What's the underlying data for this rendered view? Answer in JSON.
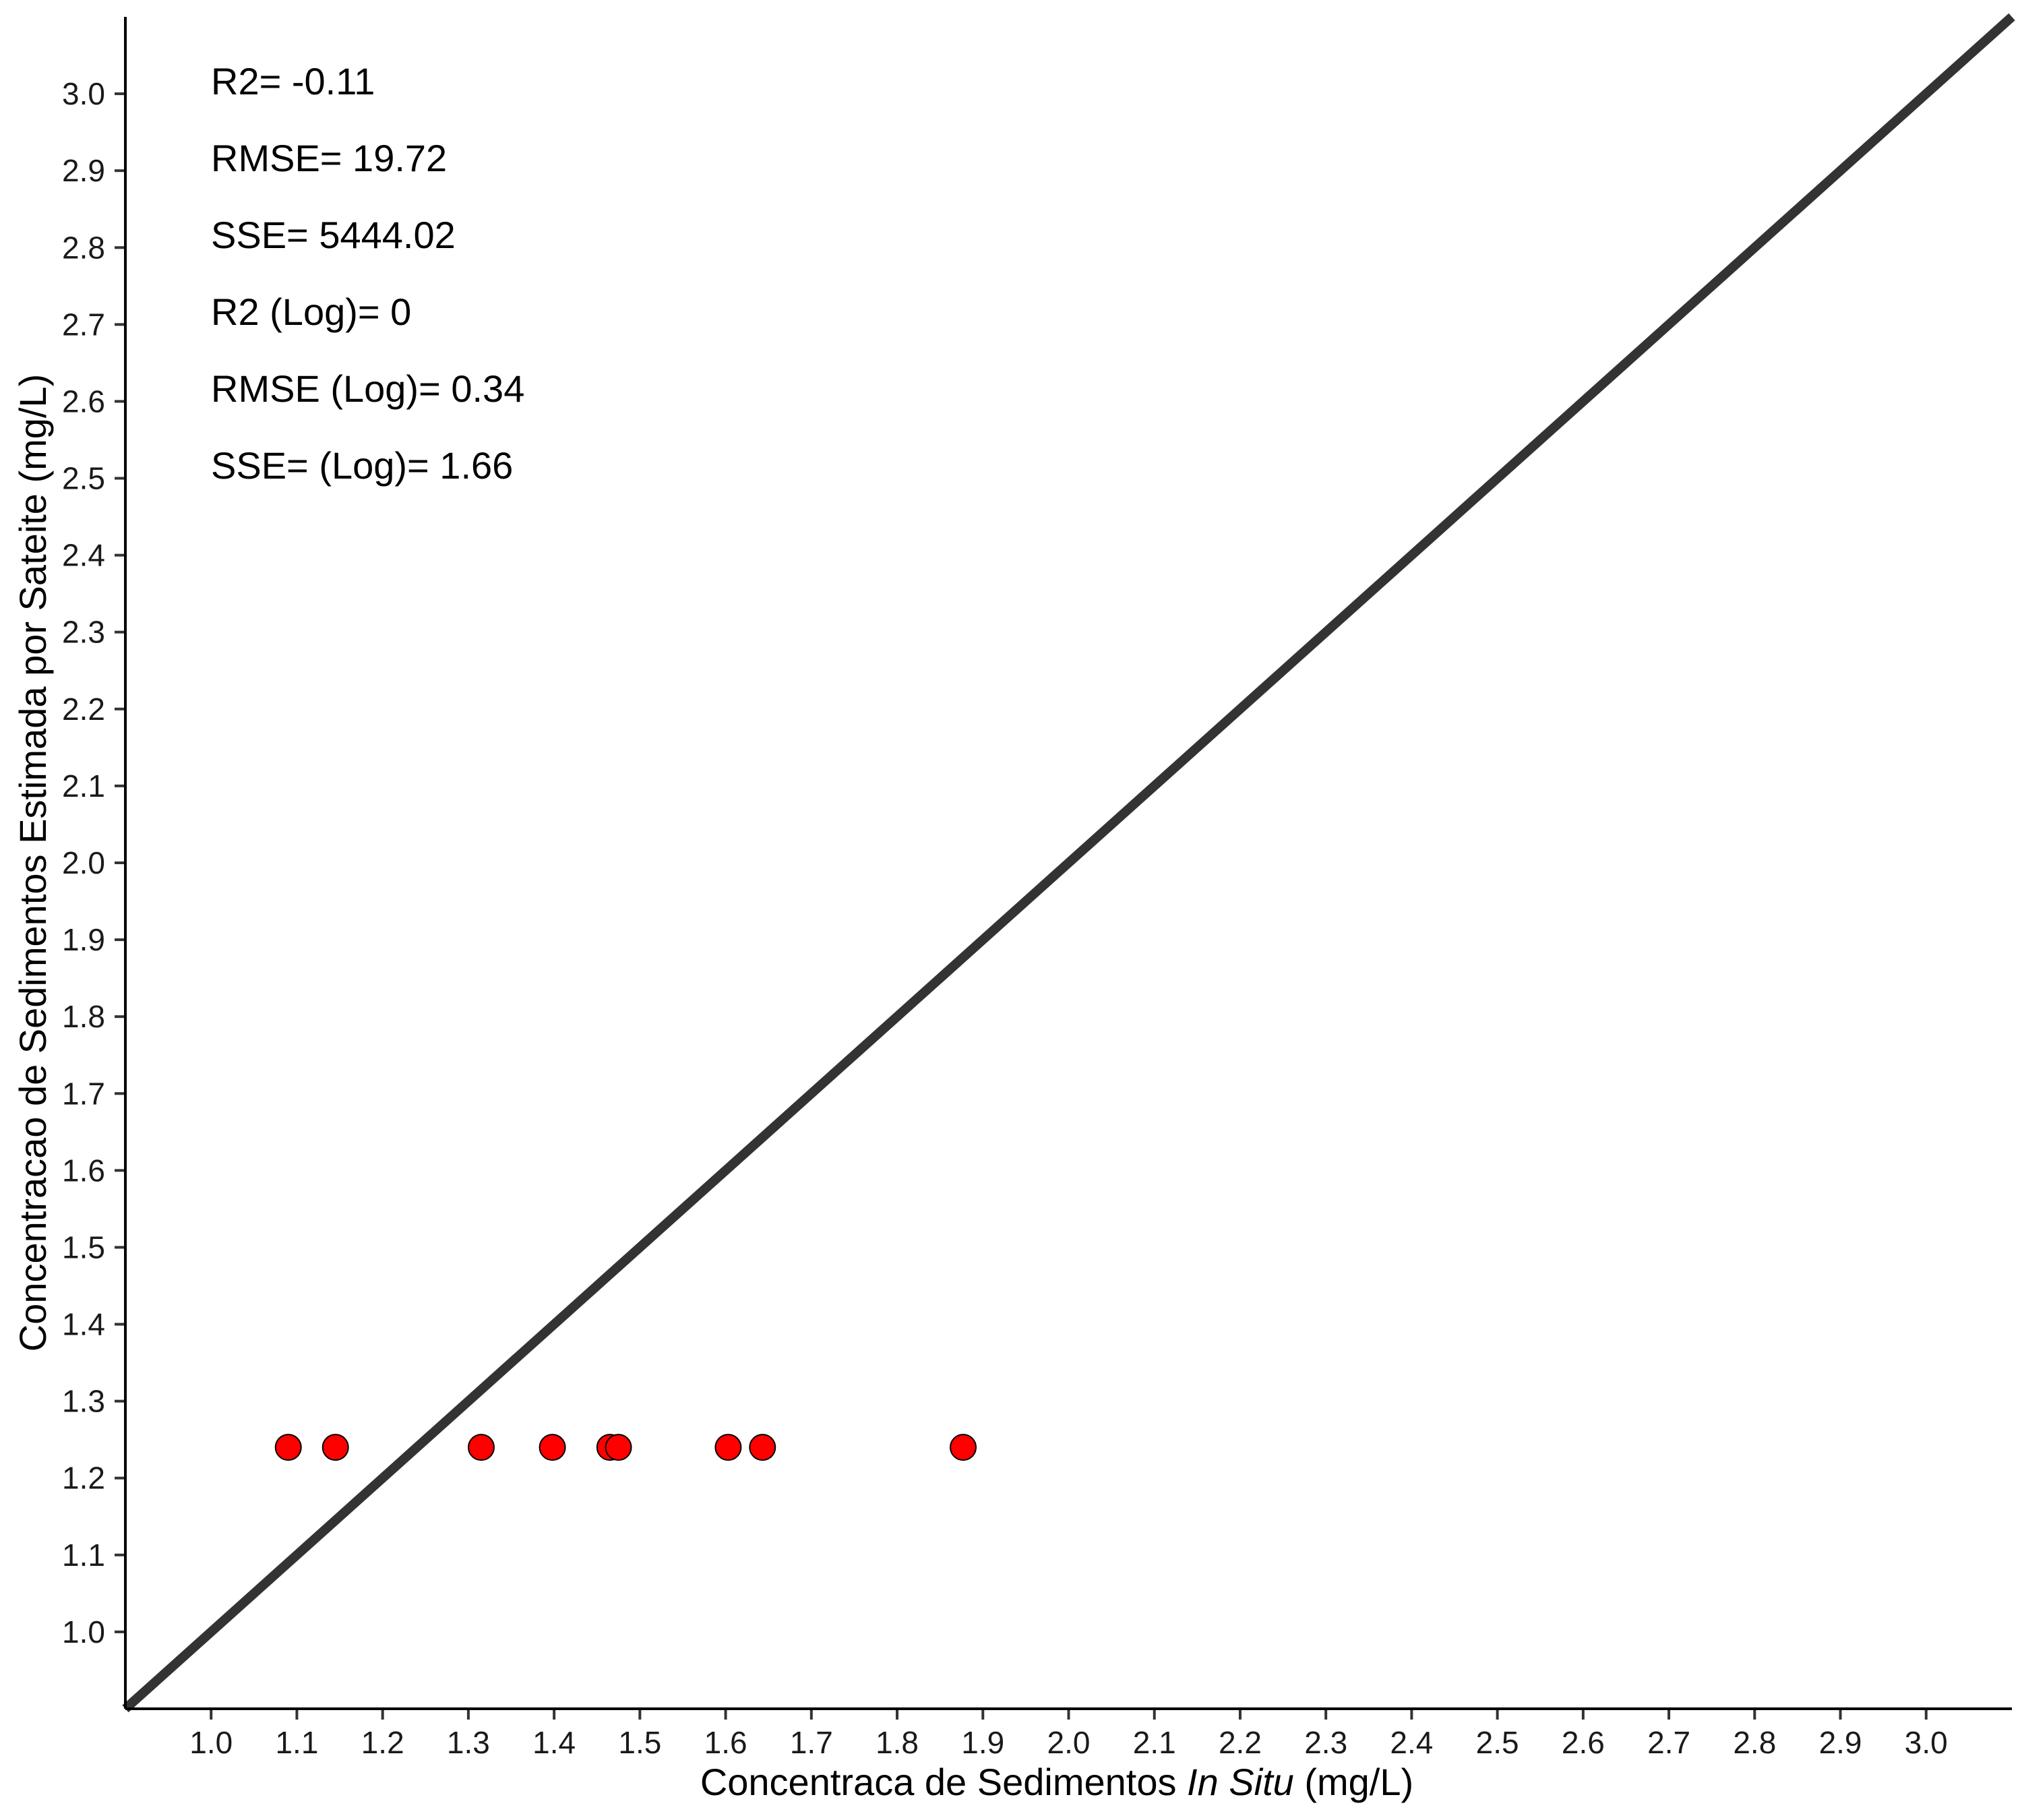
{
  "chart_data": {
    "type": "scatter",
    "xlabel": {
      "prefix": "Concentraca de Sedimentos ",
      "emphasis": "In Situ",
      "suffix": " (mg/L)"
    },
    "ylabel": "Concentracao de Sedimentos Estimada por Sateite (mg/L)",
    "xlim": [
      0.9,
      3.1
    ],
    "ylim": [
      0.9,
      3.1
    ],
    "xticks": [
      "1.0",
      "1.1",
      "1.2",
      "1.3",
      "1.4",
      "1.5",
      "1.6",
      "1.7",
      "1.8",
      "1.9",
      "2.0",
      "2.1",
      "2.2",
      "2.3",
      "2.4",
      "2.5",
      "2.6",
      "2.7",
      "2.8",
      "2.9",
      "3.0"
    ],
    "yticks": [
      "1.0",
      "1.1",
      "1.2",
      "1.3",
      "1.4",
      "1.5",
      "1.6",
      "1.7",
      "1.8",
      "1.9",
      "2.0",
      "2.1",
      "2.2",
      "2.3",
      "2.4",
      "2.5",
      "2.6",
      "2.7",
      "2.8",
      "2.9",
      "3.0"
    ],
    "grid": false,
    "reference_line": {
      "from": [
        0.9,
        0.9
      ],
      "to": [
        3.1,
        3.1
      ],
      "color": "#333333"
    },
    "points": [
      {
        "x": 1.09,
        "y": 1.24
      },
      {
        "x": 1.145,
        "y": 1.24
      },
      {
        "x": 1.315,
        "y": 1.24
      },
      {
        "x": 1.398,
        "y": 1.24
      },
      {
        "x": 1.465,
        "y": 1.24
      },
      {
        "x": 1.475,
        "y": 1.24
      },
      {
        "x": 1.603,
        "y": 1.24
      },
      {
        "x": 1.643,
        "y": 1.24
      },
      {
        "x": 1.877,
        "y": 1.24
      }
    ],
    "point_color": "#ff0000",
    "point_stroke": "#000000",
    "annotations": [
      "R2= -0.11",
      "RMSE= 19.72",
      "SSE= 5444.02",
      "R2 (Log)= 0",
      "RMSE (Log)= 0.34",
      "SSE=  (Log)= 1.66"
    ]
  }
}
